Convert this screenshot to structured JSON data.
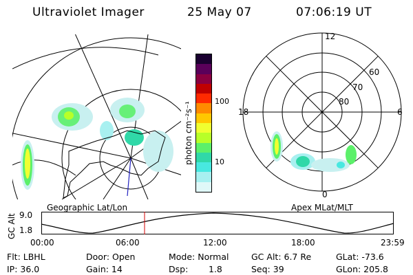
{
  "header": {
    "instrument": "Ultraviolet Imager",
    "date": "25 May 07",
    "time": "07:06:19 UT"
  },
  "colorbar": {
    "unit_label": "photon cm⁻²s⁻¹",
    "ticks": [
      "100",
      "10"
    ],
    "colors": [
      "#1a0030",
      "#5a005a",
      "#8a0040",
      "#c00000",
      "#ff2a00",
      "#ff8a00",
      "#ffc800",
      "#f0ff30",
      "#b8ff28",
      "#5cf06a",
      "#30d8a8",
      "#48e8e0",
      "#a8f0f0",
      "#e0f8f8"
    ]
  },
  "left_map": {
    "label": "Geographic Lat/Lon"
  },
  "right_map": {
    "label": "Apex MLat/MLT",
    "mlt_labels": {
      "top": "12",
      "left": "18",
      "right": "6",
      "bottom": "0"
    },
    "lat_labels": [
      "60",
      "70",
      "80"
    ]
  },
  "altitude_plot": {
    "ylabel": "GC Alt",
    "yticks": [
      "9.0",
      "1.8"
    ],
    "xticks": [
      "00:00",
      "06:00",
      "12:00",
      "18:00",
      "23:59"
    ]
  },
  "footer": {
    "flt": "Flt: LBHL",
    "ip": "IP: 36.0",
    "door": "Door: Open",
    "gain": "Gain: 14",
    "mode": "Mode: Normal",
    "dsp_label": "Dsp:",
    "dsp_value": "1.8",
    "gc_alt": "GC Alt: 6.7 Re",
    "seq": "Seq: 39",
    "glat": "GLat: -73.6",
    "glon": "GLon: 205.8"
  }
}
